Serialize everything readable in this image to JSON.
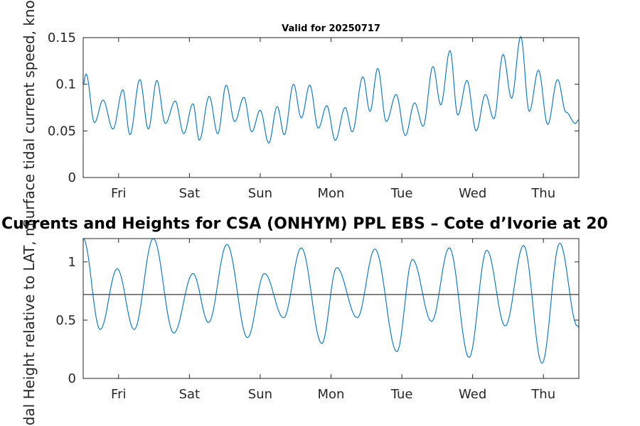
{
  "chart_data": [
    {
      "type": "line",
      "title": "Valid for 20250717",
      "xlabel": "",
      "ylabel": "Surface tidal current speed, knots",
      "xticks": [
        "Fri",
        "Sat",
        "Sun",
        "Mon",
        "Tue",
        "Wed",
        "Thu"
      ],
      "xlim": [
        0,
        7
      ],
      "ylim": [
        0,
        0.15
      ],
      "yticks": [
        0,
        0.05,
        0.1,
        0.15
      ],
      "ytick_labels": [
        "0",
        "0.05",
        "0.1",
        "0.15"
      ],
      "line_color": "#0072BD",
      "series": [
        {
          "x": [
            0,
            0.04,
            0.16,
            0.28,
            0.42,
            0.56,
            0.66,
            0.8,
            0.92,
            1.04,
            1.16,
            1.3,
            1.42,
            1.55,
            1.64,
            1.78,
            1.9,
            2.02,
            2.14,
            2.27,
            2.38,
            2.5,
            2.62,
            2.74,
            2.84,
            2.97,
            3.08,
            3.2,
            3.32,
            3.44,
            3.56,
            3.7,
            3.8,
            3.95,
            4.05,
            4.16,
            4.28,
            4.42,
            4.55,
            4.68,
            4.8,
            4.94,
            5.05,
            5.18,
            5.29,
            5.42,
            5.55,
            5.68,
            5.8,
            5.93,
            6.05,
            6.18,
            6.3,
            6.43,
            6.56,
            6.7,
            6.82,
            6.95,
            7.0
          ],
          "values": [
            0.1,
            0.111,
            0.059,
            0.083,
            0.052,
            0.094,
            0.046,
            0.105,
            0.052,
            0.104,
            0.058,
            0.082,
            0.047,
            0.079,
            0.04,
            0.087,
            0.047,
            0.099,
            0.06,
            0.086,
            0.049,
            0.072,
            0.037,
            0.076,
            0.046,
            0.1,
            0.064,
            0.099,
            0.053,
            0.077,
            0.04,
            0.075,
            0.049,
            0.108,
            0.071,
            0.117,
            0.06,
            0.089,
            0.045,
            0.08,
            0.055,
            0.119,
            0.078,
            0.136,
            0.067,
            0.104,
            0.05,
            0.089,
            0.063,
            0.132,
            0.085,
            0.151,
            0.071,
            0.115,
            0.057,
            0.105,
            0.07,
            0.058,
            0.062
          ]
        }
      ]
    },
    {
      "type": "line",
      "title": "Currents and Heights for CSA (ONHYM) PPL EBS  – Cote d’Ivorie at 20",
      "xlabel": "",
      "ylabel": "Tidal Height relative to LAT, m",
      "xticks": [
        "Fri",
        "Sat",
        "Sun",
        "Mon",
        "Tue",
        "Wed",
        "Thu"
      ],
      "xlim": [
        0,
        7
      ],
      "ylim": [
        0,
        1.2
      ],
      "yticks": [
        0,
        0.5,
        1
      ],
      "ytick_labels": [
        "0",
        "0.5",
        "1"
      ],
      "line_color": "#0072BD",
      "reference_line": {
        "y": 0.72,
        "color": "#262626"
      },
      "series": [
        {
          "x": [
            0,
            0.24,
            0.48,
            0.72,
            0.99,
            1.28,
            1.55,
            1.77,
            2.03,
            2.32,
            2.56,
            2.83,
            3.08,
            3.37,
            3.58,
            3.87,
            4.12,
            4.43,
            4.65,
            4.92,
            5.17,
            5.45,
            5.7,
            5.96,
            6.22,
            6.48,
            6.73,
            6.98,
            7.0
          ],
          "values": [
            1.2,
            0.42,
            0.94,
            0.42,
            1.2,
            0.39,
            0.9,
            0.48,
            1.15,
            0.35,
            0.9,
            0.52,
            1.12,
            0.3,
            0.95,
            0.52,
            1.11,
            0.23,
            1.02,
            0.49,
            1.12,
            0.18,
            1.1,
            0.45,
            1.14,
            0.13,
            1.16,
            0.45,
            0.44
          ]
        }
      ]
    }
  ]
}
